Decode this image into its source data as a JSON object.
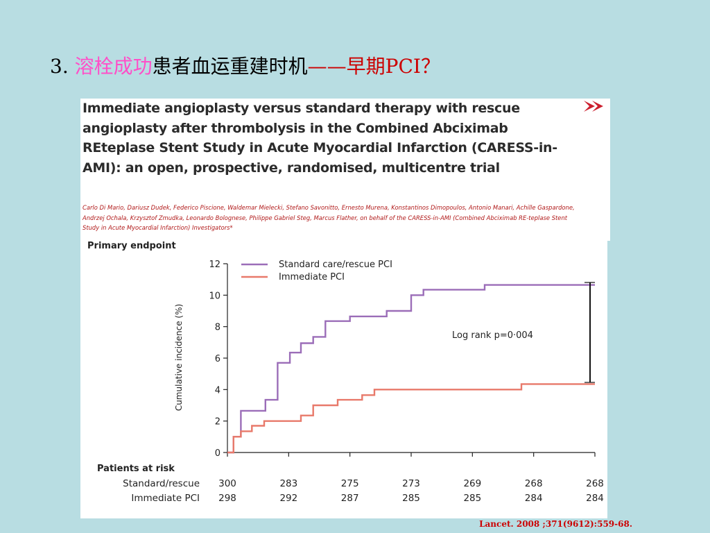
{
  "slide": {
    "title_number": "3.",
    "title_pink": "溶栓成功",
    "title_black": "患者血运重建时机",
    "title_red": "——早期PCI？"
  },
  "paper": {
    "title": "Immediate angioplasty versus standard therapy with rescue angioplasty after thrombolysis in the Combined Abciximab REteplase Stent Study in Acute Myocardial Infarction (CARESS-in-AMI): an open, prospective, randomised, multicentre trial",
    "authors": "Carlo Di Mario, Dariusz Dudek, Federico Piscione, Waldemar Mielecki, Stefano Savonitto, Ernesto Murena, Konstantinos Dimopoulos, Antonio Manari, Achille Gaspardone, Andrzej Ochala, Krzysztof Zmudka, Leonardo Bolognese, Philippe Gabriel Steg, Marcus Flather, on behalf of the CARESS-in-AMI (Combined Abciximab RE-teplase Stent Study in Acute Myocardial Infarction) Investigators*"
  },
  "citation": "Lancet. 2008 ;371(9612):559-68.",
  "chart_data": {
    "type": "line",
    "title": "Primary endpoint",
    "xlabel": "",
    "ylabel": "Cumulative incidence (%)",
    "ylim": [
      0,
      12
    ],
    "yticks": [
      "0",
      "2",
      "4",
      "6",
      "8",
      "10",
      "12"
    ],
    "xlim": [
      0,
      30
    ],
    "grid": false,
    "legend_position": "top-left",
    "annotation": "Log rank p=0·004",
    "series": [
      {
        "name": "Standard care/rescue PCI",
        "color": "#9b6db8",
        "points": [
          [
            0,
            0
          ],
          [
            0.5,
            0
          ],
          [
            0.5,
            1
          ],
          [
            1.1,
            1
          ],
          [
            1.1,
            2.65
          ],
          [
            3.1,
            2.65
          ],
          [
            3.1,
            3.35
          ],
          [
            4.1,
            3.35
          ],
          [
            4.1,
            5.7
          ],
          [
            5.1,
            5.7
          ],
          [
            5.1,
            6.35
          ],
          [
            6.0,
            6.35
          ],
          [
            6.0,
            6.95
          ],
          [
            7.0,
            6.95
          ],
          [
            7.0,
            7.35
          ],
          [
            8.0,
            7.35
          ],
          [
            8.0,
            8.35
          ],
          [
            10.0,
            8.35
          ],
          [
            10.0,
            8.65
          ],
          [
            13.0,
            8.65
          ],
          [
            13.0,
            9.0
          ],
          [
            15.0,
            9.0
          ],
          [
            15.0,
            10.0
          ],
          [
            16.0,
            10.0
          ],
          [
            16.0,
            10.35
          ],
          [
            21.0,
            10.35
          ],
          [
            21.0,
            10.65
          ],
          [
            30,
            10.65
          ]
        ]
      },
      {
        "name": "Immediate PCI",
        "color": "#e8796a",
        "points": [
          [
            0,
            0
          ],
          [
            0.5,
            0
          ],
          [
            0.5,
            1
          ],
          [
            1.1,
            1
          ],
          [
            1.1,
            1.35
          ],
          [
            2.0,
            1.35
          ],
          [
            2.0,
            1.7
          ],
          [
            3.0,
            1.7
          ],
          [
            3.0,
            2.0
          ],
          [
            6.0,
            2.0
          ],
          [
            6.0,
            2.35
          ],
          [
            7.0,
            2.35
          ],
          [
            7.0,
            3.0
          ],
          [
            9.0,
            3.0
          ],
          [
            9.0,
            3.35
          ],
          [
            11.0,
            3.35
          ],
          [
            11.0,
            3.65
          ],
          [
            12.0,
            3.65
          ],
          [
            12.0,
            4.0
          ],
          [
            24.0,
            4.0
          ],
          [
            24.0,
            4.35
          ],
          [
            30,
            4.35
          ]
        ]
      }
    ],
    "risk_table": {
      "title": "Patients at risk",
      "rows": [
        {
          "label": "Standard/rescue",
          "values": [
            "300",
            "283",
            "275",
            "273",
            "269",
            "268",
            "268"
          ]
        },
        {
          "label": "Immediate PCI",
          "values": [
            "298",
            "292",
            "287",
            "285",
            "285",
            "284",
            "284"
          ]
        }
      ]
    }
  }
}
